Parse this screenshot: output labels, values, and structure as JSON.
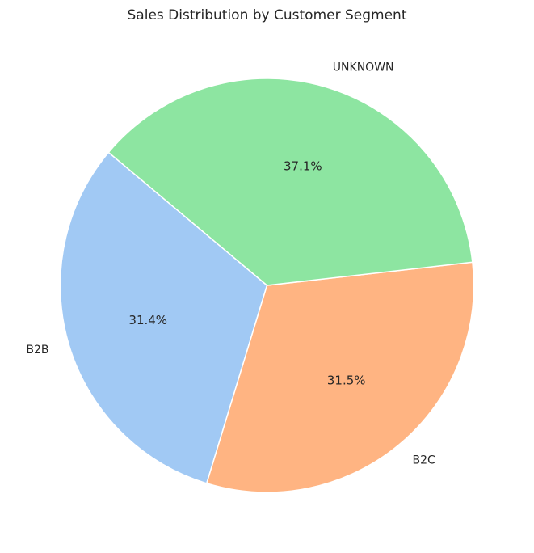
{
  "chart_data": {
    "type": "pie",
    "title": "Sales Distribution by Customer Segment",
    "categories": [
      "B2B",
      "B2C",
      "UNKNOWN"
    ],
    "values": [
      31.4,
      31.5,
      37.1
    ],
    "percent_labels": [
      "31.4%",
      "31.5%",
      "37.1%"
    ],
    "colors": [
      "#a1c9f4",
      "#ffb482",
      "#8de5a1"
    ],
    "start_angle_deg": 140,
    "direction": "counterclockwise",
    "edge_color": "#ffffff"
  }
}
